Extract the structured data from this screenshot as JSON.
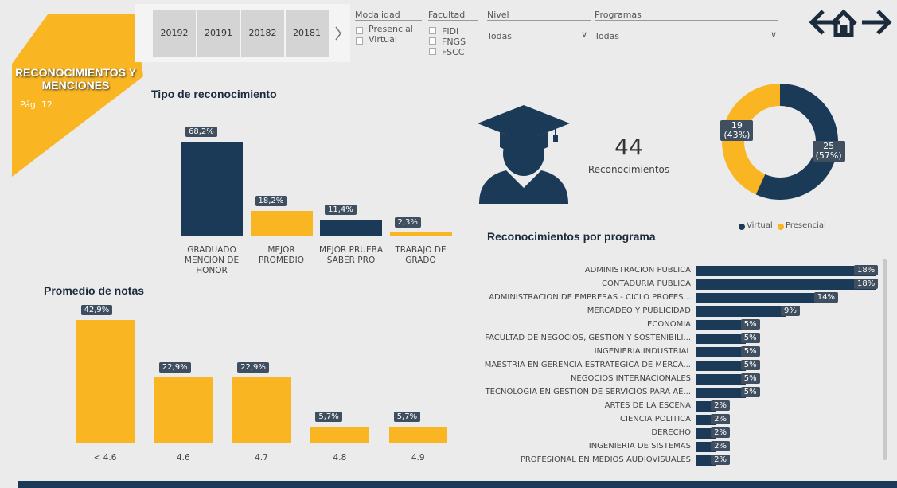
{
  "header": {
    "title": "RECONOCIMIENTOS Y MENCIONES",
    "page": "Pág. 12"
  },
  "filters": {
    "periods": [
      "20192",
      "20191",
      "20182",
      "20181"
    ],
    "modalidad": {
      "label": "Modalidad",
      "options": [
        "Presencial",
        "Virtual"
      ]
    },
    "facultad": {
      "label": "Facultad",
      "options": [
        "FIDI",
        "FNGS",
        "FSCC"
      ]
    },
    "nivel": {
      "label": "Nivel",
      "value": "Todas"
    },
    "programas": {
      "label": "Programas",
      "value": "Todas"
    }
  },
  "kpi": {
    "value": "44",
    "label": "Reconocimientos"
  },
  "chart_data": [
    {
      "type": "bar",
      "title": "Tipo de reconocimiento",
      "categories": [
        "GRADUADO MENCION DE HONOR",
        "MEJOR PROMEDIO",
        "MEJOR PRUEBA SABER PRO",
        "TRABAJO DE GRADO"
      ],
      "values": [
        68.2,
        18.2,
        11.4,
        2.3
      ],
      "value_labels": [
        "68,2%",
        "18,2%",
        "11,4%",
        "2,3%"
      ],
      "colors": [
        "#1b3a57",
        "#f9b522",
        "#1b3a57",
        "#f9b522"
      ]
    },
    {
      "type": "bar",
      "title": "Promedio de notas",
      "categories": [
        "< 4.6",
        "4.6",
        "4.7",
        "4.8",
        "4.9"
      ],
      "values": [
        42.9,
        22.9,
        22.9,
        5.7,
        5.7
      ],
      "value_labels": [
        "42,9%",
        "22,9%",
        "22,9%",
        "5,7%",
        "5,7%"
      ],
      "colors": [
        "#f9b522",
        "#f9b522",
        "#f9b522",
        "#f9b522",
        "#f9b522"
      ]
    },
    {
      "type": "donut",
      "categories": [
        "Virtual",
        "Presencial"
      ],
      "values": [
        25,
        19
      ],
      "value_labels": [
        "25\n(57%)",
        "19\n(43%)"
      ],
      "colors": [
        "#1b3a57",
        "#f9b522"
      ],
      "legend": "bottom"
    },
    {
      "type": "barh",
      "title": "Reconocimientos por programa",
      "categories": [
        "ADMINISTRACION PUBLICA",
        "CONTADURIA PUBLICA",
        "ADMINISTRACION DE EMPRESAS - CICLO PROFES...",
        "MERCADEO Y PUBLICIDAD",
        "ECONOMIA",
        "FACULTAD DE NEGOCIOS, GESTION Y SOSTENIBILI...",
        "INGENIERIA INDUSTRIAL",
        "MAESTRIA EN GERENCIA ESTRATEGICA DE MERCA...",
        "NEGOCIOS INTERNACIONALES",
        "TECNOLOGIA EN GESTION DE SERVICIOS PARA AE...",
        "ARTES DE LA ESCENA",
        "CIENCIA POLITICA",
        "DERECHO",
        "INGENIERIA DE SISTEMAS",
        "PROFESIONAL EN MEDIOS AUDIOVISUALES"
      ],
      "values": [
        18,
        18,
        14,
        9,
        5,
        5,
        5,
        5,
        5,
        5,
        2,
        2,
        2,
        2,
        2
      ],
      "value_labels": [
        "18%",
        "18%",
        "14%",
        "9%",
        "5%",
        "5%",
        "5%",
        "5%",
        "5%",
        "5%",
        "2%",
        "2%",
        "2%",
        "2%",
        "2%"
      ],
      "color": "#1b3a57"
    }
  ]
}
